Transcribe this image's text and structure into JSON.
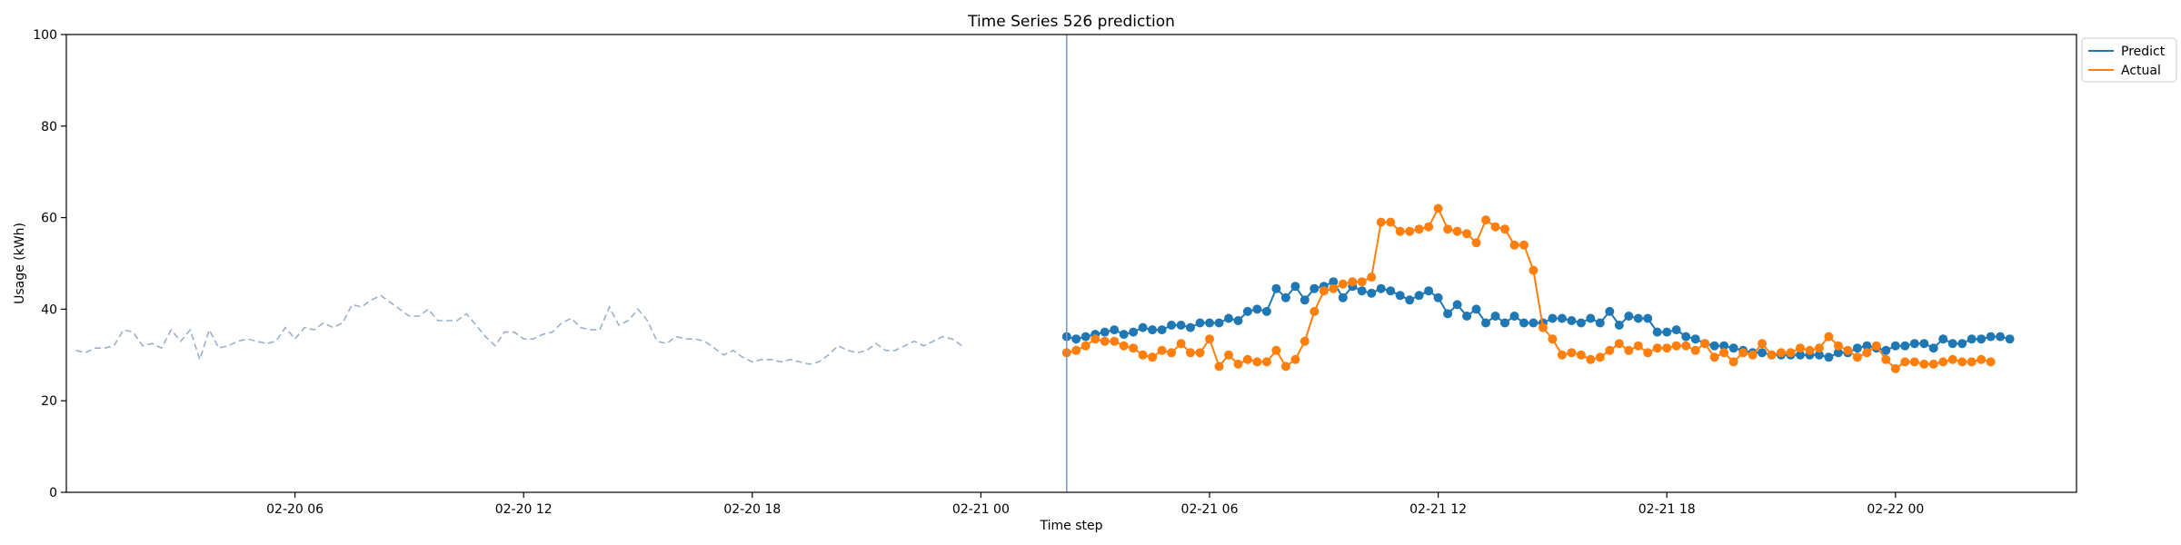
{
  "chart_data": {
    "type": "line",
    "title": "Time Series 526 prediction",
    "xlabel": "Time step",
    "ylabel": "Usage (kWh)",
    "ylim": [
      0,
      100
    ],
    "yticks": [
      0,
      20,
      40,
      60,
      80,
      100
    ],
    "x_start": "2024-02-20 00:00",
    "x_end": "2024-02-22 04:45",
    "xticks": [
      {
        "value": "2024-02-20 06:00",
        "label": "02-20 06"
      },
      {
        "value": "2024-02-20 12:00",
        "label": "02-20 12"
      },
      {
        "value": "2024-02-20 18:00",
        "label": "02-20 18"
      },
      {
        "value": "2024-02-21 00:00",
        "label": "02-21 00"
      },
      {
        "value": "2024-02-21 06:00",
        "label": "02-21 06"
      },
      {
        "value": "2024-02-21 12:00",
        "label": "02-21 12"
      },
      {
        "value": "2024-02-21 18:00",
        "label": "02-21 18"
      },
      {
        "value": "2024-02-22 00:00",
        "label": "02-22 00"
      }
    ],
    "forecast_start": "2024-02-21 02:15",
    "legend_position": "top-right outside",
    "history": {
      "start": "2024-02-20 00:15",
      "interval_minutes": 15,
      "color": "#9ab0cc",
      "style": "dashed",
      "values": [
        31,
        30.5,
        31.5,
        31.5,
        32,
        35.5,
        35,
        32,
        32.5,
        31.5,
        35.5,
        33,
        35.5,
        29,
        35.5,
        31.5,
        32,
        33,
        33.5,
        33,
        32.5,
        33,
        36,
        33.5,
        36,
        35.5,
        37,
        36,
        37,
        41,
        40.5,
        42,
        43,
        41.5,
        40,
        38.5,
        38.5,
        40,
        37.5,
        37.5,
        37.5,
        39,
        36.5,
        34,
        32,
        35,
        35,
        33.5,
        33.5,
        34.5,
        35,
        37,
        38,
        36,
        35.5,
        35.5,
        40.5,
        36.5,
        37.5,
        40,
        37.5,
        33,
        32.5,
        34,
        33.5,
        33.5,
        33,
        31.5,
        30,
        31,
        29.5,
        28.5,
        29,
        29,
        28.5,
        29,
        28.5,
        28,
        28.5,
        30,
        32,
        31,
        30.5,
        31,
        32.5,
        31,
        31,
        32,
        33,
        32,
        33,
        34,
        33.5,
        32
      ]
    },
    "series": [
      {
        "name": "Predict",
        "color": "#1f77b4",
        "start": "2024-02-21 02:15",
        "interval_minutes": 15,
        "values": [
          34,
          33.5,
          34,
          34.5,
          35,
          35.5,
          34.5,
          35,
          36,
          35.5,
          35.5,
          36.5,
          36.5,
          36,
          37,
          37,
          37,
          38,
          37.5,
          39.5,
          40,
          39.5,
          44.5,
          42.5,
          45,
          42,
          44.5,
          45,
          46,
          42.5,
          45,
          44,
          43.5,
          44.5,
          44,
          43,
          42,
          43,
          44,
          42.5,
          39,
          41,
          38.5,
          40,
          37,
          38.5,
          37,
          38.5,
          37,
          37,
          37,
          38,
          38,
          37.5,
          37,
          38,
          37,
          39.5,
          36.5,
          38.5,
          38,
          38,
          35,
          35,
          35.5,
          34,
          33.5,
          32.5,
          32,
          32,
          31.5,
          31,
          30.5,
          30.5,
          30,
          30,
          30,
          30,
          30,
          30,
          29.5,
          30.5,
          30.5,
          31.5,
          32,
          31.5,
          31,
          32,
          32,
          32.5,
          32.5,
          31.5,
          33.5,
          32.5,
          32.5,
          33.5,
          33.5,
          34,
          34,
          33.5
        ]
      },
      {
        "name": "Actual",
        "color": "#ff7f0e",
        "start": "2024-02-21 02:15",
        "interval_minutes": 15,
        "values": [
          30.5,
          31,
          32,
          33.5,
          33,
          33,
          32,
          31.5,
          30,
          29.5,
          31,
          30.5,
          32.5,
          30.5,
          30.5,
          33.5,
          27.5,
          30,
          28,
          29,
          28.5,
          28.5,
          31,
          27.5,
          29,
          33,
          39.5,
          44,
          44.5,
          45.5,
          46,
          46,
          47,
          59,
          59,
          57,
          57,
          57.5,
          58,
          62,
          57.5,
          57,
          56.5,
          54.5,
          59.5,
          58,
          57.5,
          54,
          54,
          48.5,
          36,
          33.5,
          30,
          30.5,
          30,
          29,
          29.5,
          31,
          32.5,
          31,
          32,
          30.5,
          31.5,
          31.5,
          32,
          32,
          31,
          32.5,
          29.5,
          30.5,
          28.5,
          30.5,
          30,
          32.5,
          30,
          30.5,
          30.5,
          31.5,
          31,
          31.5,
          34,
          32,
          31,
          29.5,
          30.5,
          32,
          29,
          27,
          28.5,
          28.5,
          28,
          28,
          28.5,
          29,
          28.5,
          28.5,
          29,
          28.5
        ]
      }
    ]
  }
}
